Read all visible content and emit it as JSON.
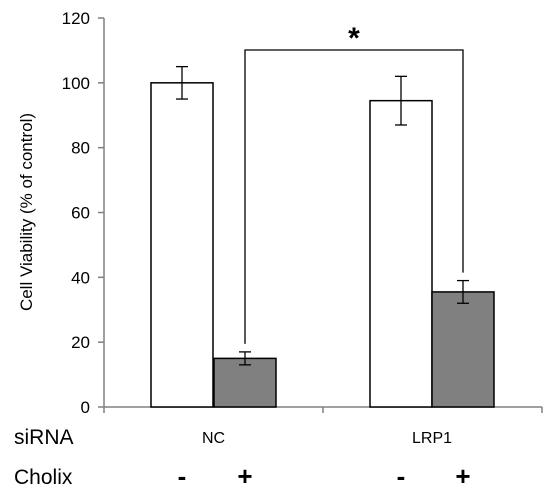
{
  "chart_data": {
    "type": "bar",
    "ylabel": "Cell Viability (% of control)",
    "ylim": [
      0,
      120
    ],
    "yticks": [
      0,
      20,
      40,
      60,
      80,
      100,
      120
    ],
    "groups": [
      "NC",
      "LRP1"
    ],
    "bars": [
      {
        "group": "NC",
        "cholix": "-",
        "value": 100,
        "error": 5,
        "color": "#ffffff"
      },
      {
        "group": "NC",
        "cholix": "+",
        "value": 15,
        "error": 2,
        "color": "#808080"
      },
      {
        "group": "LRP1",
        "cholix": "-",
        "value": 94.5,
        "error": 7.5,
        "color": "#ffffff"
      },
      {
        "group": "LRP1",
        "cholix": "+",
        "value": 35.5,
        "error": 3.5,
        "color": "#808080"
      }
    ],
    "significance": {
      "label": "*",
      "between": [
        1,
        3
      ]
    }
  },
  "row_headers": {
    "sirna": "siRNA",
    "cholix": "Cholix"
  },
  "cholix_signs": [
    "-",
    "+",
    "-",
    "+"
  ]
}
